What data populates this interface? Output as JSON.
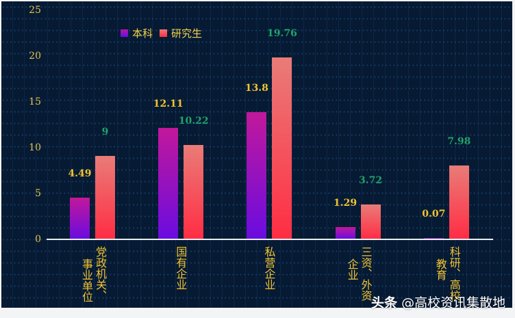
{
  "chart_data": {
    "type": "bar",
    "title": "",
    "xlabel": "",
    "ylabel": "",
    "ylim": [
      0,
      25
    ],
    "yticks": [
      "0",
      "5",
      "10",
      "15",
      "20",
      "25"
    ],
    "grid": true,
    "legend_position": "top-left",
    "categories": [
      "党政机关、事业单位",
      "国有企业",
      "私营企业",
      "三资、外资企业",
      "科研、高校教育"
    ],
    "category_columns": [
      [
        "党政机关、",
        "事业单位"
      ],
      [
        "国有企业"
      ],
      [
        "私营企业"
      ],
      [
        "三资、外资",
        "企业"
      ],
      [
        "科研、高校",
        "教育"
      ]
    ],
    "series": [
      {
        "name": "本科",
        "values": [
          4.49,
          12.11,
          13.8,
          1.29,
          0.07
        ],
        "labels": [
          "4.49",
          "12.11",
          "13.8",
          "1.29",
          "0.07"
        ],
        "color": "#8a10c8"
      },
      {
        "name": "研究生",
        "values": [
          9,
          10.22,
          19.76,
          3.72,
          7.98
        ],
        "labels": [
          "9",
          "10.22",
          "19.76",
          "3.72",
          "7.98"
        ],
        "color": "#f04a55"
      }
    ]
  },
  "legend": {
    "items": [
      {
        "label": "本科"
      },
      {
        "label": "研究生"
      }
    ]
  },
  "watermark": {
    "brand": "头条",
    "handle": "@高校资讯集散地"
  },
  "colors": {
    "background": "#061a33",
    "axis_text": "#e8c24a",
    "label_bk": "#f2c431",
    "label_yjs": "#1fa36a"
  }
}
